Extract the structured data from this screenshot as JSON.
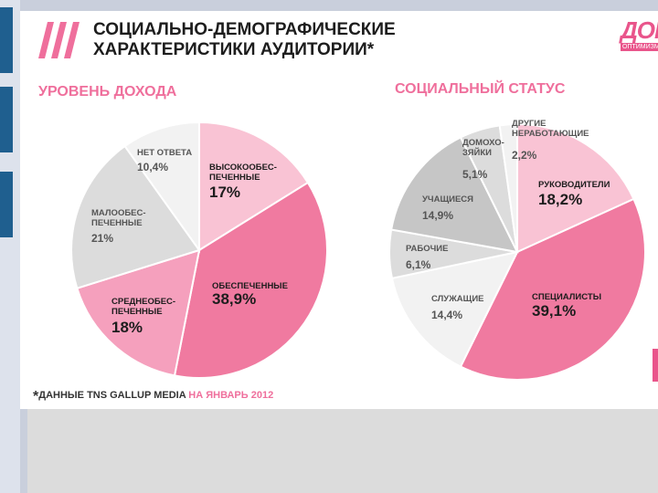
{
  "header": {
    "title": "СОЦИАЛЬНО-ДЕМОГРАФИЧЕСКИЕ\nХАРАКТЕРИСТИКИ АУДИТОРИИ*",
    "logo_text": "ДОМ",
    "logo_sub": "ОПТИМИЗМ"
  },
  "colors": {
    "pink_dark": "#f07aa0",
    "pink_light": "#f9c3d4",
    "pink_mid": "#f5a0bd",
    "grey_light": "#f2f2f2",
    "grey_mid": "#dcdcdc",
    "grey_dark": "#c6c6c6",
    "accent": "#ef6f9c"
  },
  "chart_data": [
    {
      "type": "pie",
      "title": "УРОВЕНЬ ДОХОДА",
      "slices": [
        {
          "label": "ВЫСОКООБЕС-\nПЕЧЕННЫЕ",
          "value": 17,
          "value_label": "17%"
        },
        {
          "label": "ОБЕСПЕЧЕННЫЕ",
          "value": 38.9,
          "value_label": "38,9%"
        },
        {
          "label": "СРЕДНЕОБЕС-\nПЕЧЕННЫЕ",
          "value": 18,
          "value_label": "18%"
        },
        {
          "label": "МАЛООБЕС-\nПЕЧЕННЫЕ",
          "value": 21,
          "value_label": "21%"
        },
        {
          "label": "НЕТ ОТВЕТА",
          "value": 10.4,
          "value_label": "10,4%"
        }
      ]
    },
    {
      "type": "pie",
      "title": "СОЦИАЛЬНЫЙ СТАТУС",
      "slices": [
        {
          "label": "РУКОВОДИТЕЛИ",
          "value": 18.2,
          "value_label": "18,2%"
        },
        {
          "label": "СПЕЦИАЛИСТЫ",
          "value": 39.1,
          "value_label": "39,1%"
        },
        {
          "label": "СЛУЖАЩИЕ",
          "value": 14.4,
          "value_label": "14,4%"
        },
        {
          "label": "РАБОЧИЕ",
          "value": 6.1,
          "value_label": "6,1%"
        },
        {
          "label": "УЧАЩИЕСЯ",
          "value": 14.9,
          "value_label": "14,9%"
        },
        {
          "label": "ДОМОХО-\nЗЯЙКИ",
          "value": 5.1,
          "value_label": "5,1%"
        },
        {
          "label": "ДРУГИЕ\nНЕРАБОТАЮЩИЕ",
          "value": 2.2,
          "value_label": "2,2%"
        }
      ]
    }
  ],
  "footnote": {
    "star": "*",
    "text": "ДАННЫЕ TNS GALLUP MEDIA ",
    "highlight": "НА ЯНВАРЬ 2012"
  }
}
